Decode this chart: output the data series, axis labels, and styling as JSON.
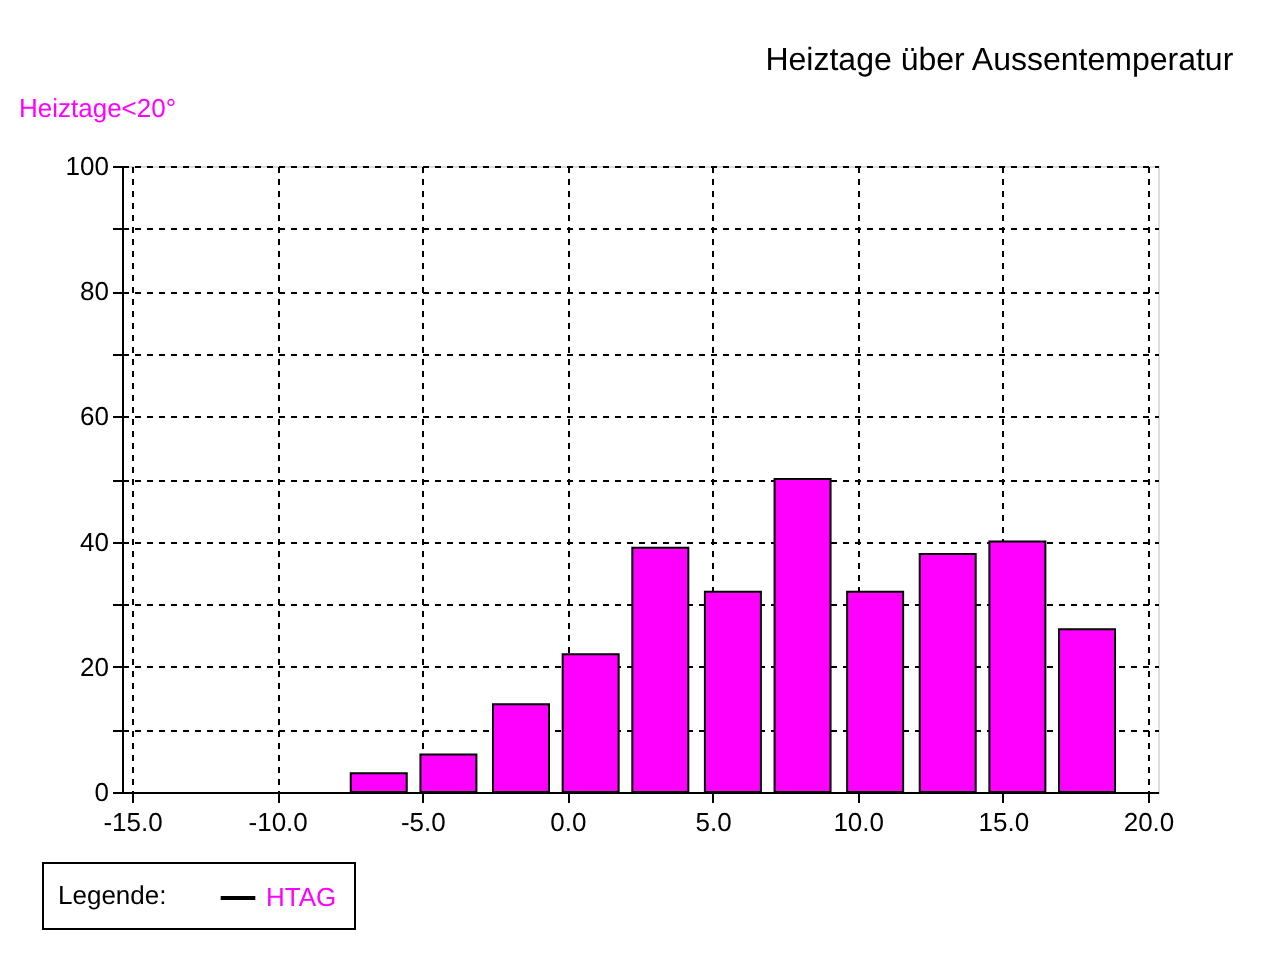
{
  "chart_data": {
    "type": "bar",
    "title": "Heiztage über Aussentemperatur",
    "ylabel": "Heiztage<20°",
    "legend_title": "Legende:",
    "x": [
      -6.5,
      -4.1,
      -1.6,
      0.8,
      3.2,
      5.7,
      8.1,
      10.6,
      13.1,
      15.5,
      17.9
    ],
    "series": [
      {
        "name": "HTAG",
        "color": "#ff00ff",
        "values": [
          3,
          6,
          14,
          22,
          39,
          32,
          50,
          32,
          38,
          40,
          26
        ]
      }
    ],
    "xlim": [
      -15,
      20
    ],
    "xticks": [
      {
        "value": -15,
        "label": "-15.0"
      },
      {
        "value": -10,
        "label": "-10.0"
      },
      {
        "value": -5,
        "label": "-5.0"
      },
      {
        "value": 0,
        "label": "0.0"
      },
      {
        "value": 5,
        "label": "5.0"
      },
      {
        "value": 10,
        "label": "10.0"
      },
      {
        "value": 15,
        "label": "15.0"
      },
      {
        "value": 20,
        "label": "20.0"
      }
    ],
    "ylim": [
      0,
      100
    ],
    "yticks": [
      0,
      {
        "value": 10,
        "label": null
      },
      20,
      {
        "value": 30,
        "label": null
      },
      40,
      {
        "value": 50,
        "label": null
      },
      60,
      {
        "value": 70,
        "label": null
      },
      80,
      {
        "value": 90,
        "label": null
      },
      100
    ],
    "grid": true,
    "legend": "bottom left"
  }
}
